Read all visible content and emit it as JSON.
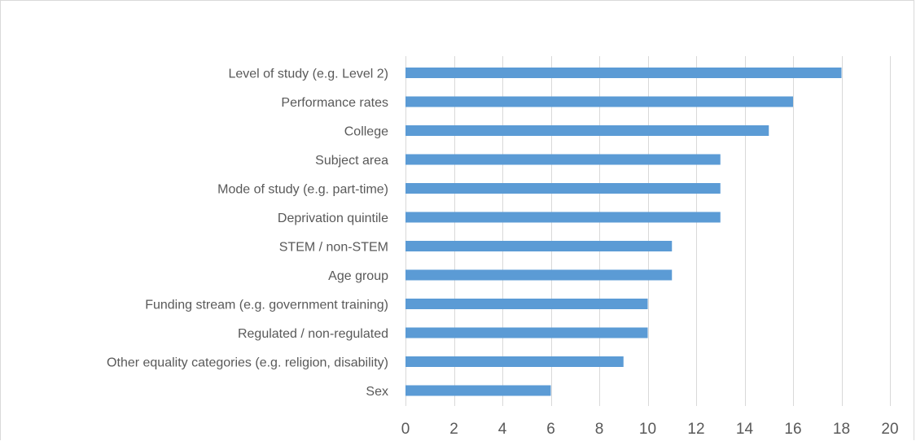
{
  "chart_data": {
    "type": "bar",
    "orientation": "horizontal",
    "title": "",
    "xlabel": "",
    "ylabel": "",
    "categories": [
      "Level of study (e.g. Level 2)",
      "Performance rates",
      "College",
      "Subject area",
      "Mode of study (e.g. part-time)",
      "Deprivation quintile",
      "STEM / non-STEM",
      "Age group",
      "Funding stream (e.g. government training)",
      "Regulated / non-regulated",
      "Other equality categories (e.g. religion, disability)",
      "Sex"
    ],
    "values": [
      18,
      16,
      15,
      13,
      13,
      13,
      11,
      11,
      10,
      10,
      9,
      6
    ],
    "xlim": [
      0,
      20
    ],
    "xticks": [
      0,
      2,
      4,
      6,
      8,
      10,
      12,
      14,
      16,
      18,
      20
    ],
    "grid": "vertical",
    "legend": "none",
    "colors": {
      "bar": "#5b9bd5",
      "grid": "#d9d9d9",
      "text": "#595959"
    }
  }
}
